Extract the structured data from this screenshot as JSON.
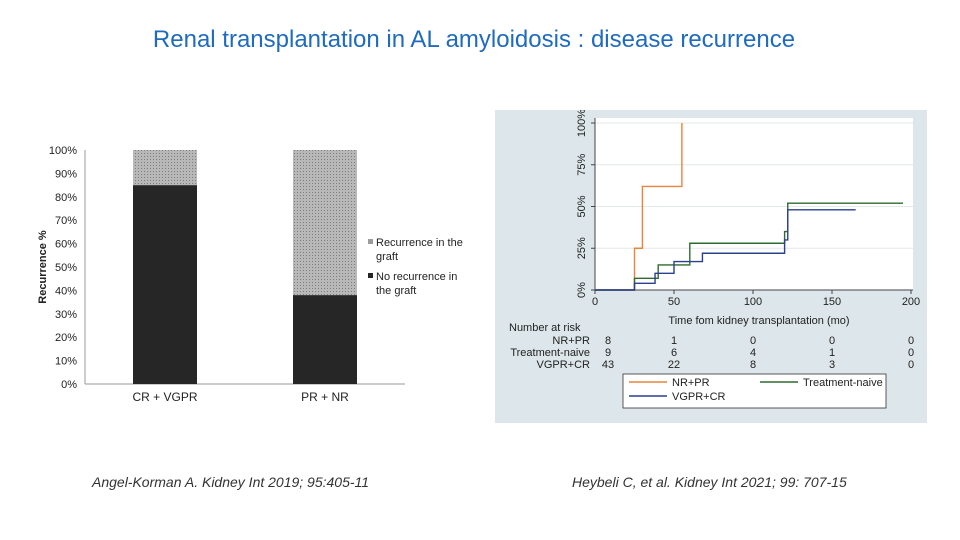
{
  "slide": {
    "title": "Renal transplantation in AL amyloidosis : disease recurrence",
    "citation_left": "Angel-Korman A. Kidney Int 2019; 95:405-11",
    "citation_right": "Heybeli C, et al. Kidney Int 2021; 99: 707-15"
  },
  "chart_data": [
    {
      "type": "bar",
      "stacked": true,
      "ylabel": "Recurrence %",
      "xlabel": "",
      "ylim": [
        0,
        100
      ],
      "yticks": [
        "0%",
        "10%",
        "20%",
        "30%",
        "40%",
        "50%",
        "60%",
        "70%",
        "80%",
        "90%",
        "100%"
      ],
      "categories": [
        "CR + VGPR",
        "PR + NR"
      ],
      "series": [
        {
          "name": "No recurrence in the graft",
          "values": [
            85,
            38
          ],
          "color": "#262626"
        },
        {
          "name": "Recurrence in the graft",
          "values": [
            15,
            62
          ],
          "color": "#a6a6a6"
        }
      ],
      "legend_lines": [
        [
          "Recurrence in the",
          "graft"
        ],
        [
          "No recurrence in",
          "the graft"
        ]
      ],
      "legend_position": "right"
    },
    {
      "type": "line",
      "step": true,
      "xlabel": "Time fom kidney transplantation (mo)",
      "ylabel": "",
      "xlim": [
        0,
        200
      ],
      "ylim": [
        0,
        100
      ],
      "xticks": [
        0,
        50,
        100,
        150,
        200
      ],
      "yticks": [
        "0%",
        "25%",
        "50%",
        "75%",
        "100%"
      ],
      "series": [
        {
          "name": "NR+PR",
          "color": "#e8843c",
          "x": [
            0,
            25,
            25,
            30,
            30,
            55,
            55
          ],
          "y": [
            0,
            0,
            25,
            25,
            62,
            62,
            100
          ]
        },
        {
          "name": "Treatment-naive",
          "color": "#2e6b2e",
          "x": [
            0,
            25,
            25,
            40,
            40,
            60,
            60,
            120,
            120,
            122,
            122,
            195
          ],
          "y": [
            0,
            0,
            7,
            7,
            15,
            15,
            28,
            28,
            35,
            35,
            52,
            52
          ]
        },
        {
          "name": "VGPR+CR",
          "color": "#2b3f8f",
          "x": [
            0,
            25,
            25,
            38,
            38,
            50,
            50,
            68,
            68,
            120,
            120,
            122,
            122,
            165
          ],
          "y": [
            0,
            0,
            4,
            4,
            10,
            10,
            17,
            17,
            22,
            22,
            30,
            30,
            48,
            48
          ]
        }
      ],
      "risk_table": {
        "header": "Number at risk",
        "rows": [
          {
            "label": "NR+PR",
            "values": [
              "8",
              "1",
              "0",
              "0",
              "0"
            ]
          },
          {
            "label": "Treatment-naive",
            "values": [
              "9",
              "6",
              "4",
              "1",
              "0"
            ]
          },
          {
            "label": "VGPR+CR",
            "values": [
              "43",
              "22",
              "8",
              "3",
              "0"
            ]
          }
        ]
      },
      "legend": [
        "NR+PR",
        "Treatment-naive",
        "VGPR+CR"
      ],
      "legend_position": "bottom"
    }
  ]
}
